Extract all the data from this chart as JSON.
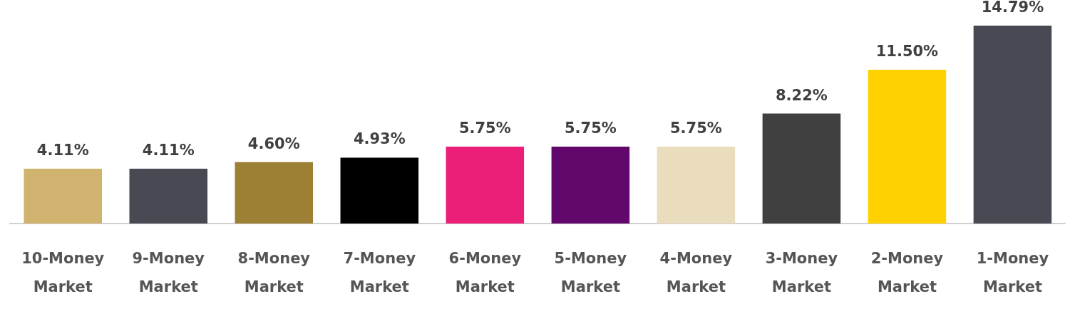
{
  "chart_data": {
    "type": "bar",
    "categories": [
      "10-Money Market",
      "9-Money Market",
      "8-Money Market",
      "7-Money Market",
      "6-Money Market",
      "5-Money Market",
      "4-Money Market",
      "3-Money Market",
      "2-Money Market",
      "1-Money Market"
    ],
    "values": [
      4.11,
      4.11,
      4.6,
      4.93,
      5.75,
      5.75,
      5.75,
      8.22,
      11.5,
      14.79
    ],
    "colors": [
      "#cfb36f",
      "#474a52",
      "#9e8035",
      "#000000",
      "#ec1f78",
      "#62086c",
      "#e9ddbd",
      "#404040",
      "#fed100",
      "#474a52"
    ],
    "value_labels": [
      "4.11%",
      "4.11%",
      "4.60%",
      "4.93%",
      "5.75%",
      "5.75%",
      "5.75%",
      "8.22%",
      "11.50%",
      "14.79%"
    ],
    "grid": false,
    "legend": false
  }
}
